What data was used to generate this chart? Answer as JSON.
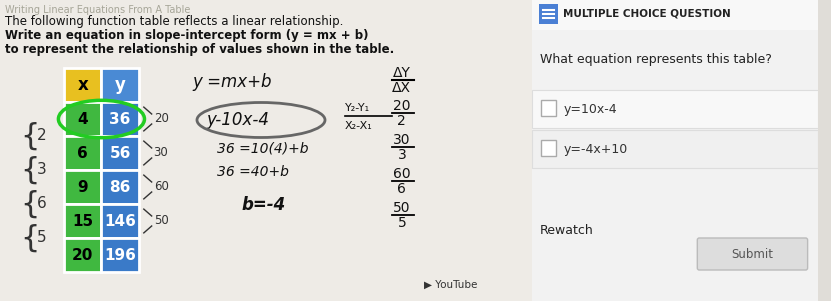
{
  "left_bg": "#e0ddd8",
  "right_bg": "#f2f2f2",
  "title_line1": "The following function table reflects a linear relationship.",
  "title_line2": "Write an equation in slope-intercept form (y = mx + b)",
  "title_line3": "to represent the relationship of values shown in the table.",
  "overlay_text": "Writing Linear Equations From A Table",
  "table_headers": [
    "x",
    "y"
  ],
  "table_data": [
    [
      4,
      36
    ],
    [
      6,
      56
    ],
    [
      9,
      86
    ],
    [
      15,
      146
    ],
    [
      20,
      196
    ]
  ],
  "header_bg_x": "#e8c020",
  "header_bg_y": "#4a8ad4",
  "row_bg_x": "#40b840",
  "row_bg_y": "#3a7ac8",
  "right_title": "MULTIPLE CHOICE QUESTION",
  "right_question": "What equation represents this table?",
  "choice1": "y=10x-4",
  "choice2": "y=-4x+10",
  "btn_rewatch": "Rewatch",
  "btn_submit": "Submit",
  "icon_color": "#4a7fd4",
  "left_numbers": [
    "2",
    "3",
    "6",
    "5"
  ],
  "brace_values": [
    "20",
    "30",
    "60",
    "50"
  ],
  "hw_y_eq": "y =mx+b",
  "hw_circled": "y-10x-4",
  "hw_line1": "36 =10(4)+b",
  "hw_line2": "36 =40+b",
  "hw_b": "b=-4",
  "delta_header_num": "ΔY",
  "delta_header_den": "ΔX",
  "delta_fracs": [
    [
      "20",
      "2"
    ],
    [
      "30",
      "3"
    ],
    [
      "60",
      "6"
    ],
    [
      "50",
      "5"
    ]
  ],
  "slope_num": "Y₂-Y₁",
  "slope_den": "X₂-X₁"
}
